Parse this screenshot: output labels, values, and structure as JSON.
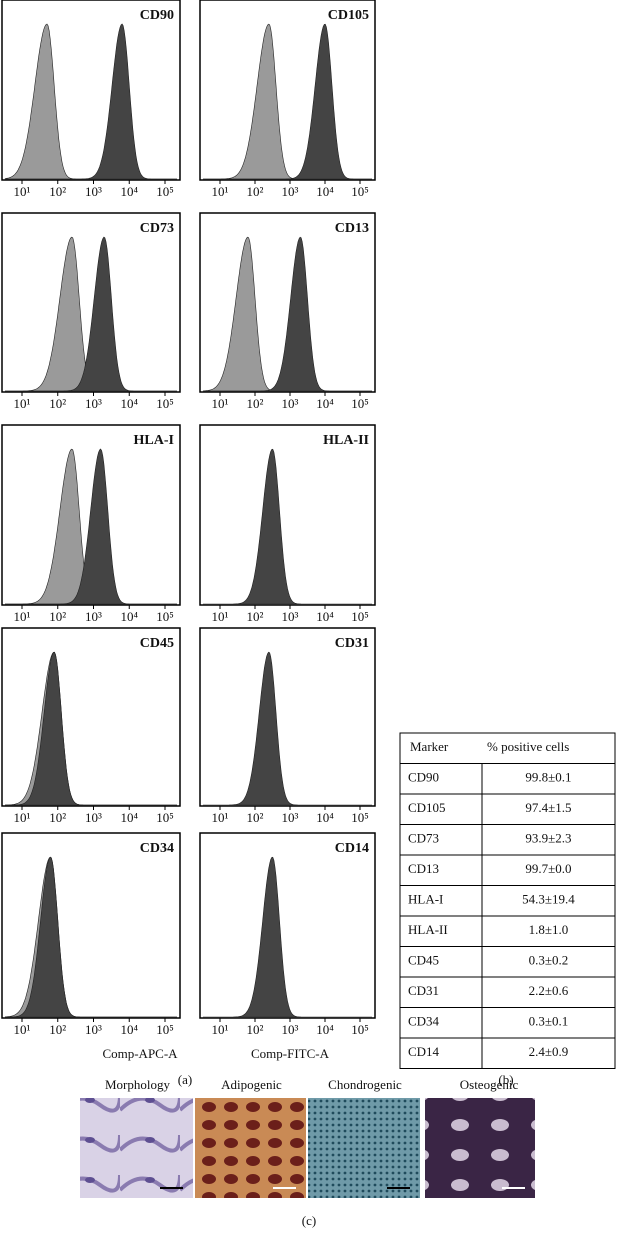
{
  "panel_a": {
    "label": "(a)",
    "x_ticks": [
      "10¹",
      "10²",
      "10³",
      "10⁴",
      "10⁵"
    ],
    "x_axis_titles": [
      "Comp-APC-A",
      "Comp-FITC-A"
    ],
    "markers": [
      "CD90",
      "CD105",
      "CD73",
      "CD13",
      "HLA-I",
      "HLA-II",
      "CD45",
      "CD31",
      "CD34",
      "CD14"
    ]
  },
  "panel_b": {
    "label": "(b)",
    "table": {
      "header": [
        "Marker",
        "% positive cells"
      ],
      "rows": [
        [
          "CD90",
          "99.8±0.1"
        ],
        [
          "CD105",
          "97.4±1.5"
        ],
        [
          "CD73",
          "93.9±2.3"
        ],
        [
          "CD13",
          "99.7±0.0"
        ],
        [
          "HLA-I",
          "54.3±19.4"
        ],
        [
          "HLA-II",
          "1.8±1.0"
        ],
        [
          "CD45",
          "0.3±0.2"
        ],
        [
          "CD31",
          "2.2±0.6"
        ],
        [
          "CD34",
          "0.3±0.1"
        ],
        [
          "CD14",
          "2.4±0.9"
        ]
      ]
    }
  },
  "panel_c": {
    "label": "(c)",
    "images": [
      "Morphology",
      "Adipogenic",
      "Chondrogenic",
      "Osteogenic"
    ]
  }
}
